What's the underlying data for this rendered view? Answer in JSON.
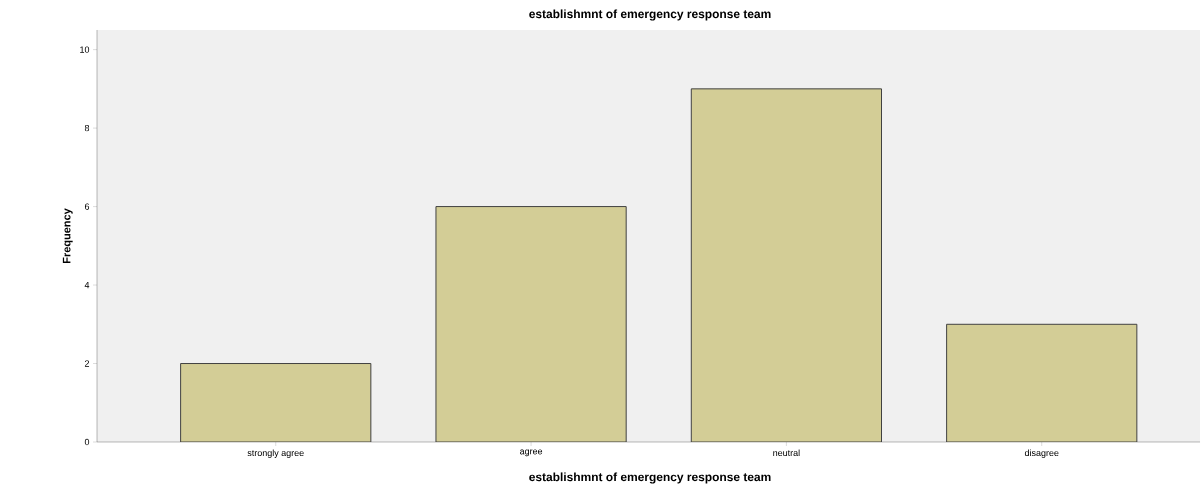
{
  "chart_data": {
    "type": "bar",
    "title": "establishmnt of emergency response team",
    "xlabel": "establishmnt of emergency response team",
    "ylabel": "Frequency",
    "categories": [
      "strongly agree",
      "agree",
      "neutral",
      "disagree"
    ],
    "values": [
      2,
      6,
      9,
      3
    ],
    "color": "#d3cd96",
    "ylim": [
      0,
      10.5
    ],
    "yticks": [
      0,
      2,
      4,
      6,
      8,
      10
    ]
  }
}
